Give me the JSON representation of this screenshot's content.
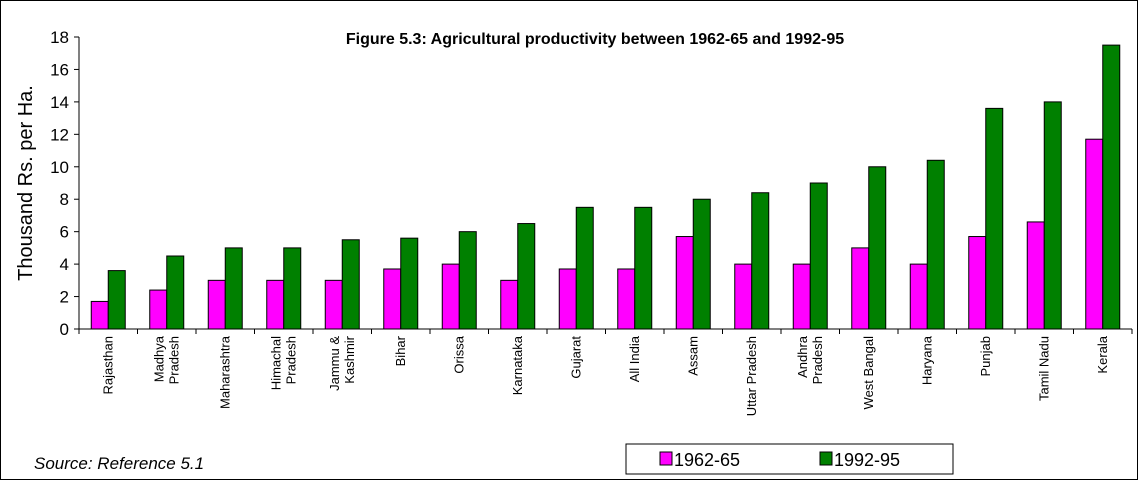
{
  "chart_data": {
    "type": "bar",
    "title": "Figure 5.3: Agricultural productivity between 1962-65 and 1992-95",
    "ylabel": "Thousand Rs. per Ha.",
    "xlabel": "",
    "ylim": [
      0,
      18
    ],
    "yticks": [
      0,
      2,
      4,
      6,
      8,
      10,
      12,
      14,
      16,
      18
    ],
    "grid": false,
    "legend_position": "bottom-right",
    "categories": [
      [
        "Rajasthan"
      ],
      [
        "Madhya",
        "Pradesh"
      ],
      [
        "Maharashtra"
      ],
      [
        "Himachal",
        "Pradesh"
      ],
      [
        "Jammu &",
        "Kashmir"
      ],
      [
        "Bihar"
      ],
      [
        "Orissa"
      ],
      [
        "Karnataka"
      ],
      [
        "Gujarat"
      ],
      [
        "All India"
      ],
      [
        "Assam"
      ],
      [
        "Uttar Pradesh"
      ],
      [
        "Andhra",
        "Pradesh"
      ],
      [
        "West Bangal"
      ],
      [
        "Haryana"
      ],
      [
        "Punjab"
      ],
      [
        "Tamil Nadu"
      ],
      [
        "Kerala"
      ]
    ],
    "series": [
      {
        "name": "1962-65",
        "color": "#ff00ff",
        "values": [
          1.7,
          2.4,
          3.0,
          3.0,
          3.0,
          3.7,
          4.0,
          3.0,
          3.7,
          3.7,
          5.7,
          4.0,
          4.0,
          5.0,
          4.0,
          5.7,
          6.6,
          11.7
        ]
      },
      {
        "name": "1992-95",
        "color": "#008000",
        "values": [
          3.6,
          4.5,
          5.0,
          5.0,
          5.5,
          5.6,
          6.0,
          6.5,
          7.5,
          7.5,
          8.0,
          8.4,
          9.0,
          10.0,
          10.4,
          13.6,
          14.0,
          17.5
        ]
      }
    ]
  },
  "source_note": "Source: Reference 5.1"
}
